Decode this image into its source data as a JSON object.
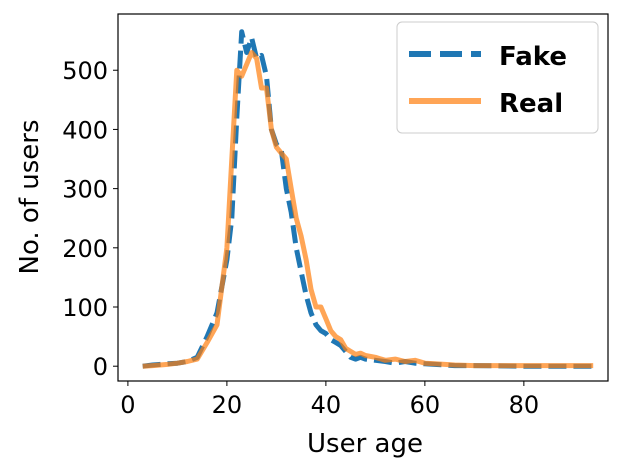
{
  "chart_data": {
    "type": "line",
    "xlabel": "User age",
    "ylabel": "No. of users",
    "xlim": [
      -2,
      97
    ],
    "ylim": [
      -25,
      595
    ],
    "xticks": [
      0,
      20,
      40,
      60,
      80
    ],
    "yticks": [
      0,
      100,
      200,
      300,
      400,
      500
    ],
    "legend_position": "top-right",
    "series": [
      {
        "name": "Fake",
        "color": "#1f77b4",
        "style": "dashed",
        "x": [
          3,
          5,
          8,
          10,
          12,
          14,
          16,
          18,
          20,
          21,
          22,
          23,
          24,
          25,
          26,
          27,
          28,
          29,
          30,
          31,
          32,
          33,
          34,
          35,
          36,
          37,
          38,
          39,
          40,
          41,
          42,
          43,
          44,
          45,
          46,
          47,
          48,
          50,
          52,
          54,
          56,
          58,
          60,
          62,
          64,
          66,
          70,
          80,
          90,
          94
        ],
        "values": [
          0,
          2,
          4,
          5,
          8,
          15,
          50,
          90,
          180,
          250,
          420,
          565,
          530,
          555,
          520,
          525,
          490,
          400,
          375,
          365,
          300,
          260,
          200,
          160,
          120,
          90,
          70,
          60,
          55,
          45,
          40,
          35,
          25,
          15,
          12,
          15,
          12,
          10,
          8,
          5,
          8,
          5,
          4,
          3,
          2,
          1,
          1,
          0,
          0,
          0
        ]
      },
      {
        "name": "Real",
        "color": "#ff7f0e",
        "style": "solid",
        "x": [
          3,
          5,
          8,
          10,
          12,
          14,
          16,
          18,
          20,
          21,
          22,
          23,
          24,
          25,
          26,
          27,
          28,
          29,
          30,
          31,
          32,
          33,
          34,
          35,
          36,
          37,
          38,
          39,
          40,
          41,
          42,
          43,
          44,
          45,
          46,
          47,
          48,
          50,
          52,
          54,
          56,
          58,
          60,
          62,
          64,
          66,
          70,
          80,
          90,
          94
        ],
        "values": [
          0,
          1,
          3,
          5,
          8,
          12,
          40,
          70,
          200,
          350,
          500,
          490,
          510,
          530,
          520,
          470,
          470,
          400,
          370,
          360,
          350,
          300,
          250,
          220,
          180,
          130,
          100,
          100,
          80,
          60,
          50,
          45,
          30,
          25,
          20,
          22,
          18,
          15,
          10,
          12,
          8,
          10,
          5,
          4,
          3,
          2,
          1,
          1,
          1,
          1
        ]
      }
    ]
  }
}
